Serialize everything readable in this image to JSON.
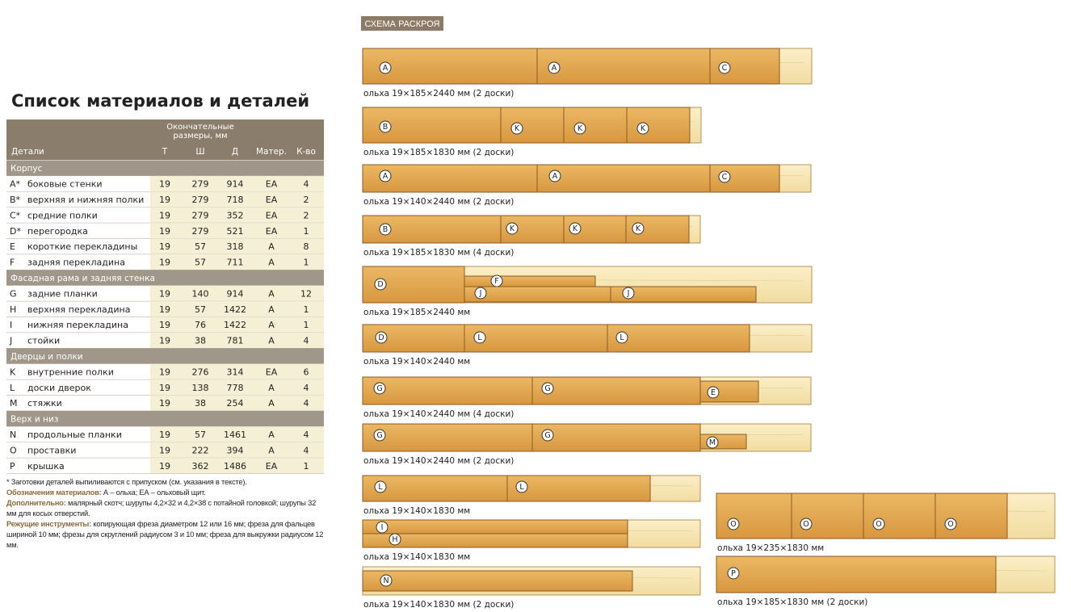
{
  "title": "Список материалов и деталей",
  "table": {
    "header_group": [
      "Окончательные",
      "размеры, мм"
    ],
    "columns": [
      "Детали",
      "Т",
      "Ш",
      "Д",
      "Матер.",
      "К-во"
    ],
    "sections": [
      {
        "name": "Корпус",
        "rows": [
          [
            "A*",
            "боковые стенки",
            19,
            279,
            914,
            "EA",
            4
          ],
          [
            "B*",
            "верхняя и нижняя полки",
            19,
            279,
            718,
            "EA",
            2
          ],
          [
            "C*",
            "средние полки",
            19,
            279,
            352,
            "EA",
            2
          ],
          [
            "D*",
            "перегородка",
            19,
            279,
            521,
            "EA",
            1
          ],
          [
            "E",
            "короткие перекладины",
            19,
            57,
            318,
            "A",
            8
          ],
          [
            "F",
            "задняя перекладина",
            19,
            57,
            711,
            "A",
            1
          ]
        ]
      },
      {
        "name": "Фасадная рама и задняя стенка",
        "rows": [
          [
            "G",
            "задние планки",
            19,
            140,
            914,
            "A",
            12
          ],
          [
            "H",
            "верхняя перекладина",
            19,
            57,
            1422,
            "A",
            1
          ],
          [
            "I",
            "нижняя перекладина",
            19,
            76,
            1422,
            "A",
            1
          ],
          [
            "J",
            "стойки",
            19,
            38,
            781,
            "A",
            4
          ]
        ]
      },
      {
        "name": "Дверцы и полки",
        "rows": [
          [
            "K",
            "внутренние полки",
            19,
            276,
            314,
            "EA",
            6
          ],
          [
            "L",
            "доски дверок",
            19,
            138,
            778,
            "A",
            4
          ],
          [
            "M",
            "стяжки",
            19,
            38,
            254,
            "A",
            4
          ]
        ]
      },
      {
        "name": "Верх и низ",
        "rows": [
          [
            "N",
            "продольные планки",
            19,
            57,
            1461,
            "A",
            4
          ],
          [
            "O",
            "проставки",
            19,
            222,
            394,
            "A",
            4
          ],
          [
            "P",
            "крышка",
            19,
            362,
            1486,
            "EA",
            1
          ]
        ]
      }
    ]
  },
  "notes": [
    {
      "text": "* Заготовки деталей выпиливаются с припуском (см. указания в тексте)."
    },
    {
      "label": "Обозначения материалов:",
      "text": "А – ольха; ЕА – ольховый щит."
    },
    {
      "label": "Дополнительно:",
      "text": "малярный скотч; шурупы 4,2×32 и 4,2×38 с потайной головкой; шурупы 32 мм для косых отверстий."
    },
    {
      "label": "Режущие инструменты:",
      "text": "копирующая фреза диаметром 12 или 16 мм; фреза для фальцев шириной 10 мм; фрезы для скруглений радиусом 3 и 10 мм; фреза для выкружки радиусом 12 мм."
    }
  ],
  "diagram": {
    "title": "СХЕМА РАСКРОЯ",
    "boards": [
      {
        "caption": "ольха 19×185×2440 мм (2 доски)",
        "pieces": [
          "A",
          "A",
          "C"
        ]
      },
      {
        "caption": "ольха 19×185×1830 мм (2 доски)",
        "pieces": [
          "B",
          "K",
          "K",
          "K"
        ]
      },
      {
        "caption": "ольха 19×140×2440 мм (2 доски)",
        "pieces": [
          "A",
          "A",
          "C"
        ]
      },
      {
        "caption": "ольха 19×185×1830 мм (4 доски)",
        "pieces": [
          "B",
          "K",
          "K",
          "K"
        ]
      },
      {
        "caption": "ольха 19×185×2440 мм",
        "pieces": [
          "D",
          "F",
          "J",
          "J"
        ]
      },
      {
        "caption": "ольха 19×140×2440 мм",
        "pieces": [
          "D",
          "L",
          "L"
        ]
      },
      {
        "caption": "ольха 19×140×2440 мм (4 доски)",
        "pieces": [
          "G",
          "G",
          "E"
        ]
      },
      {
        "caption": "ольха 19×140×2440 мм (2 доски)",
        "pieces": [
          "G",
          "G",
          "M"
        ]
      },
      {
        "caption": "ольха 19×140×1830 мм",
        "pieces": [
          "L",
          "L"
        ]
      },
      {
        "caption": "ольха 19×140×1830 мм",
        "pieces": [
          "I",
          "H"
        ]
      },
      {
        "caption": "ольха 19×140×1830 мм (2 доски)",
        "pieces": [
          "N"
        ]
      },
      {
        "caption": "ольха 19×235×1830 мм",
        "pieces": [
          "O",
          "O",
          "O",
          "O"
        ]
      },
      {
        "caption": "ольха 19×185×1830 мм (2 доски)",
        "pieces": [
          "P"
        ]
      }
    ]
  }
}
